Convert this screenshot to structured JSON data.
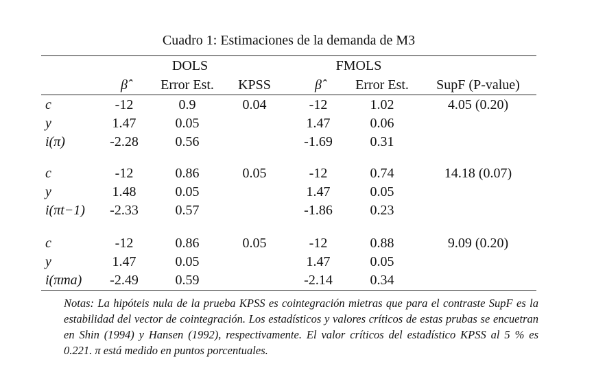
{
  "title": "Cuadro 1: Estimaciones de la demanda de M3",
  "groups": [
    "DOLS",
    "FMOLS"
  ],
  "columns": [
    "β̂",
    "Error Est.",
    "KPSS",
    "β̂",
    "Error Est.",
    "SupF (P-value)"
  ],
  "blocks": [
    {
      "rows": [
        {
          "label": "c",
          "cells": [
            "-12",
            "0.9",
            "0.04",
            "-12",
            "1.02",
            "4.05 (0.20)"
          ]
        },
        {
          "label": "y",
          "cells": [
            "1.47",
            "0.05",
            "",
            "1.47",
            "0.06",
            ""
          ]
        },
        {
          "label": "i(π)",
          "cells": [
            "-2.28",
            "0.56",
            "",
            "-1.69",
            "0.31",
            ""
          ]
        }
      ]
    },
    {
      "rows": [
        {
          "label": "c",
          "cells": [
            "-12",
            "0.86",
            "0.05",
            "-12",
            "0.74",
            "14.18 (0.07)"
          ]
        },
        {
          "label": "y",
          "cells": [
            "1.48",
            "0.05",
            "",
            "1.47",
            "0.05",
            ""
          ]
        },
        {
          "label": "i(πt−1)",
          "cells": [
            "-2.33",
            "0.57",
            "",
            "-1.86",
            "0.23",
            ""
          ]
        }
      ]
    },
    {
      "rows": [
        {
          "label": "c",
          "cells": [
            "-12",
            "0.86",
            "0.05",
            "-12",
            "0.88",
            "9.09 (0.20)"
          ]
        },
        {
          "label": "y",
          "cells": [
            "1.47",
            "0.05",
            "",
            "1.47",
            "0.05",
            ""
          ]
        },
        {
          "label": "i(πma)",
          "cells": [
            "-2.49",
            "0.59",
            "",
            "-2.14",
            "0.34",
            ""
          ]
        }
      ]
    }
  ],
  "notes": "Notas: La hipóteis nula de la prueba KPSS es cointegración mietras que para el contraste SupF es la estabilidad del vector de cointegración. Los estadísticos y valores críticos de estas prubas se encuetran en Shin (1994) y Hansen (1992), respectivamente. El valor críticos del estadístico KPSS al 5 % es 0.221. π está medido en puntos porcentuales."
}
